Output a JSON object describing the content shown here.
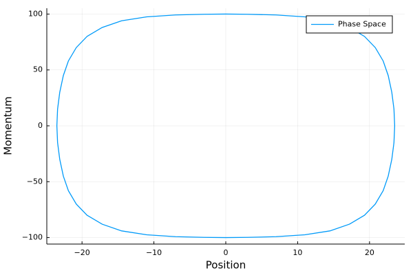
{
  "chart_data": {
    "type": "line",
    "x_label": "Position",
    "y_label": "Momentum",
    "series": [
      {
        "name": "Phase Space",
        "color": "#009af9",
        "x": [
          -23.5,
          -23.4,
          -23.1,
          -22.6,
          -21.9,
          -20.8,
          -19.3,
          -17.2,
          -14.5,
          -11,
          -7,
          -3,
          0,
          3,
          7,
          11,
          14.5,
          17.2,
          19.3,
          20.8,
          21.9,
          22.6,
          23.1,
          23.4,
          23.5,
          23.4,
          23.1,
          22.6,
          21.9,
          20.8,
          19.3,
          17.2,
          14.5,
          11,
          7,
          3,
          0,
          -3,
          -7,
          -11,
          -14.5,
          -17.2,
          -19.3,
          -20.8,
          -21.9,
          -22.6,
          -23.1,
          -23.4,
          -23.5
        ],
        "values": [
          0,
          15,
          30,
          45,
          58,
          70,
          80,
          88,
          94,
          97.5,
          99.2,
          99.8,
          100,
          99.8,
          99.2,
          97.5,
          94,
          88,
          80,
          70,
          58,
          45,
          30,
          15,
          0,
          -15,
          -30,
          -45,
          -58,
          -70,
          -80,
          -88,
          -94,
          -97.5,
          -99.2,
          -99.8,
          -100,
          -99.8,
          -99.2,
          -97.5,
          -94,
          -88,
          -80,
          -70,
          -58,
          -45,
          -30,
          -15,
          0
        ]
      }
    ],
    "xlim": [
      -24.9,
      24.9
    ],
    "ylim": [
      -105.8,
      105.2
    ],
    "xticks": [
      {
        "value": -20,
        "label": "−20"
      },
      {
        "value": -10,
        "label": "−10"
      },
      0,
      10,
      20
    ],
    "yticks": [
      {
        "value": -100,
        "label": "−100"
      },
      {
        "value": -50,
        "label": "−50"
      },
      0,
      50,
      100
    ],
    "grid": true,
    "legend": "top-right"
  }
}
